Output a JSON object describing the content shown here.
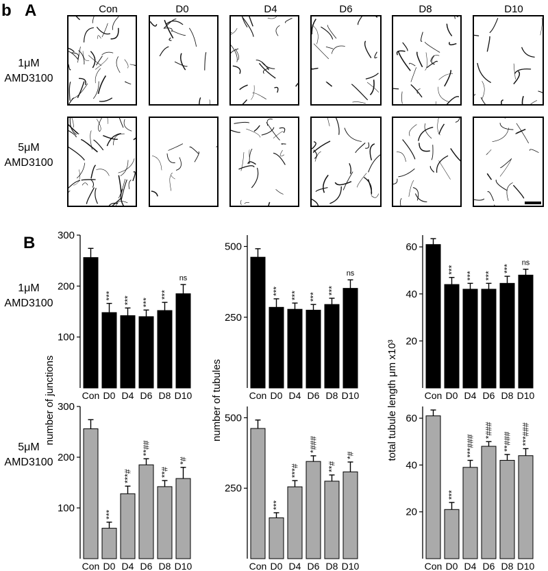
{
  "panel_labels": {
    "b": "b",
    "A": "A",
    "B": "B"
  },
  "conditions": [
    "Con",
    "D0",
    "D4",
    "D6",
    "D8",
    "D10"
  ],
  "row_labels": [
    {
      "line1": "1μM",
      "line2": "AMD3100"
    },
    {
      "line1": "5μM",
      "line2": "AMD3100"
    }
  ],
  "chart_data": [
    {
      "type": "bar",
      "panel": "1uM-junctions",
      "categories": [
        "Con",
        "D0",
        "D4",
        "D6",
        "D8",
        "D10"
      ],
      "values": [
        256,
        148,
        142,
        140,
        152,
        185
      ],
      "errors": [
        18,
        18,
        15,
        13,
        16,
        18
      ],
      "annotations": [
        "",
        "***",
        "***",
        "***",
        "***",
        "ns"
      ],
      "yticks": [
        100,
        200,
        300
      ],
      "ylim": [
        0,
        300
      ],
      "color": "#000000",
      "ylabel": ""
    },
    {
      "type": "bar",
      "panel": "1uM-tubules",
      "categories": [
        "Con",
        "D0",
        "D4",
        "D6",
        "D8",
        "D10"
      ],
      "values": [
        462,
        285,
        278,
        275,
        295,
        352
      ],
      "errors": [
        30,
        30,
        22,
        20,
        22,
        30
      ],
      "annotations": [
        "",
        "***",
        "***",
        "***",
        "***",
        "ns"
      ],
      "yticks": [
        250,
        500
      ],
      "ylim": [
        0,
        540
      ],
      "color": "#000000",
      "ylabel": ""
    },
    {
      "type": "bar",
      "panel": "1uM-length",
      "categories": [
        "Con",
        "D0",
        "D4",
        "D6",
        "D8",
        "D10"
      ],
      "values": [
        61,
        44,
        42,
        42,
        44.5,
        48
      ],
      "errors": [
        2.5,
        3,
        2.5,
        2.5,
        3,
        2.5
      ],
      "annotations": [
        "",
        "***",
        "***",
        "***",
        "***",
        "ns"
      ],
      "yticks": [
        20,
        40,
        60
      ],
      "ylim": [
        0,
        65
      ],
      "color": "#000000",
      "ylabel": ""
    },
    {
      "type": "bar",
      "panel": "5uM-junctions",
      "categories": [
        "Con",
        "D0",
        "D4",
        "D6",
        "D8",
        "D10"
      ],
      "values": [
        256,
        60,
        128,
        185,
        142,
        158
      ],
      "errors": [
        18,
        12,
        15,
        12,
        12,
        22
      ],
      "annotations": [
        "",
        "***",
        "***#",
        "**##",
        "**#",
        "*#"
      ],
      "yticks": [
        100,
        200,
        300
      ],
      "ylim": [
        0,
        300
      ],
      "color": "#aaaaaa",
      "ylabel": "number of junctions"
    },
    {
      "type": "bar",
      "panel": "5uM-tubules",
      "categories": [
        "Con",
        "D0",
        "D4",
        "D6",
        "D8",
        "D10"
      ],
      "values": [
        462,
        145,
        255,
        345,
        275,
        308
      ],
      "errors": [
        30,
        18,
        22,
        20,
        22,
        35
      ],
      "annotations": [
        "",
        "***",
        "***#",
        "*###",
        "**#",
        "*#"
      ],
      "yticks": [
        250,
        500
      ],
      "ylim": [
        0,
        540
      ],
      "color": "#aaaaaa",
      "ylabel": "number of tubules"
    },
    {
      "type": "bar",
      "panel": "5uM-length",
      "categories": [
        "Con",
        "D0",
        "D4",
        "D6",
        "D8",
        "D10"
      ],
      "values": [
        61,
        21,
        39,
        48,
        42,
        44
      ],
      "errors": [
        2.5,
        3,
        3,
        2,
        2.5,
        3
      ],
      "annotations": [
        "",
        "***",
        "***###",
        "*###",
        "**###",
        "***###"
      ],
      "yticks": [
        20,
        40,
        60
      ],
      "ylim": [
        0,
        65
      ],
      "color": "#aaaaaa",
      "ylabel": "total tubule length μm x10³"
    }
  ]
}
